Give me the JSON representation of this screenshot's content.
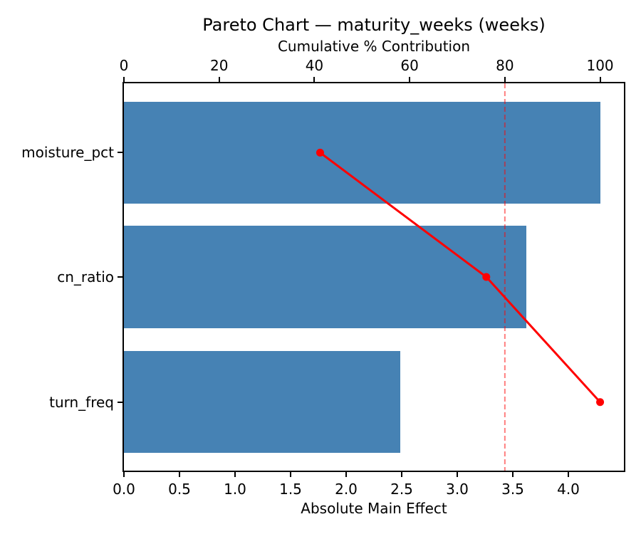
{
  "chart_data": {
    "type": "bar",
    "subtype": "pareto-horizontal",
    "title": "Pareto Chart — maturity_weeks (weeks)",
    "categories": [
      "moisture_pct",
      "cn_ratio",
      "turn_freq"
    ],
    "series": [
      {
        "name": "Absolute Main Effect",
        "type": "bar",
        "values": [
          4.29,
          3.62,
          2.49
        ]
      },
      {
        "name": "Cumulative % Contribution",
        "type": "line",
        "values": [
          41.2,
          76.1,
          100.0
        ]
      }
    ],
    "bar_color": "#4682b4",
    "line_color": "#ff0000",
    "marker": "circle",
    "x_axis": {
      "label": "Absolute Main Effect",
      "min": 0,
      "max": 4.5,
      "tick_labels": [
        "0.0",
        "0.5",
        "1.0",
        "1.5",
        "2.0",
        "2.5",
        "3.0",
        "3.5",
        "4.0"
      ]
    },
    "top_axis": {
      "label": "Cumulative % Contribution",
      "min": 0,
      "max": 105,
      "tick_labels": [
        "0",
        "20",
        "40",
        "60",
        "80",
        "100"
      ]
    },
    "threshold_line": {
      "value_pct": 80,
      "color": "#ff0000",
      "opacity": 0.5,
      "style": "dashed"
    },
    "grid": false,
    "legend": "none"
  }
}
